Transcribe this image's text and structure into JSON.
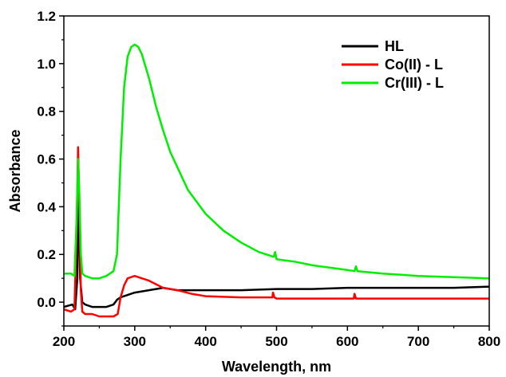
{
  "chart_data": {
    "type": "line",
    "title": "",
    "xlabel": "Wavelength, nm",
    "ylabel": "Absorbance",
    "xlim": [
      200,
      800
    ],
    "ylim": [
      -0.1,
      1.2
    ],
    "xticks": [
      "200",
      "300",
      "400",
      "500",
      "600",
      "700",
      "800"
    ],
    "yticks": [
      "0.0",
      "0.2",
      "0.4",
      "0.6",
      "0.8",
      "1.0",
      "1.2"
    ],
    "grid": false,
    "legend": "top-right",
    "series": [
      {
        "name": "HL",
        "color": "#000000",
        "x": [
          200,
          212,
          216,
          219,
          221,
          223,
          226,
          230,
          240,
          250,
          260,
          270,
          275,
          280,
          290,
          300,
          320,
          340,
          360,
          400,
          450,
          500,
          550,
          600,
          650,
          700,
          750,
          800
        ],
        "y": [
          -0.02,
          -0.01,
          -0.03,
          0.1,
          0.5,
          0.1,
          0.0,
          -0.01,
          -0.02,
          -0.02,
          -0.02,
          -0.01,
          0.01,
          0.02,
          0.03,
          0.04,
          0.05,
          0.06,
          0.05,
          0.05,
          0.05,
          0.055,
          0.055,
          0.06,
          0.06,
          0.06,
          0.06,
          0.065
        ]
      },
      {
        "name": "Co(II) - L",
        "color": "#ff0000",
        "x": [
          200,
          210,
          215,
          218,
          220,
          222,
          224,
          226,
          230,
          240,
          250,
          260,
          270,
          276,
          280,
          285,
          290,
          300,
          310,
          320,
          340,
          360,
          380,
          400,
          450,
          494,
          495,
          497,
          500,
          550,
          600,
          609,
          610,
          612,
          615,
          700,
          800
        ],
        "y": [
          -0.03,
          -0.04,
          -0.03,
          0.3,
          0.65,
          0.4,
          0.05,
          -0.04,
          -0.05,
          -0.05,
          -0.06,
          -0.06,
          -0.06,
          -0.05,
          0.02,
          0.07,
          0.1,
          0.11,
          0.1,
          0.09,
          0.06,
          0.05,
          0.035,
          0.025,
          0.02,
          0.02,
          0.04,
          0.02,
          0.015,
          0.015,
          0.015,
          0.015,
          0.035,
          0.015,
          0.015,
          0.015,
          0.015
        ]
      },
      {
        "name": "Cr(III) - L",
        "color": "#00ee00",
        "x": [
          200,
          210,
          215,
          218,
          220,
          222,
          224,
          226,
          230,
          240,
          250,
          260,
          270,
          275,
          280,
          285,
          290,
          295,
          300,
          305,
          310,
          320,
          330,
          340,
          350,
          375,
          400,
          425,
          450,
          475,
          496,
          498,
          500,
          525,
          550,
          575,
          600,
          610,
          612,
          614,
          650,
          700,
          750,
          800
        ],
        "y": [
          0.12,
          0.12,
          0.11,
          0.35,
          0.6,
          0.45,
          0.2,
          0.12,
          0.11,
          0.1,
          0.1,
          0.11,
          0.13,
          0.2,
          0.6,
          0.9,
          1.03,
          1.07,
          1.08,
          1.07,
          1.04,
          0.94,
          0.82,
          0.72,
          0.63,
          0.47,
          0.37,
          0.3,
          0.25,
          0.21,
          0.19,
          0.21,
          0.18,
          0.17,
          0.155,
          0.145,
          0.135,
          0.13,
          0.15,
          0.13,
          0.12,
          0.11,
          0.105,
          0.1
        ]
      }
    ]
  }
}
